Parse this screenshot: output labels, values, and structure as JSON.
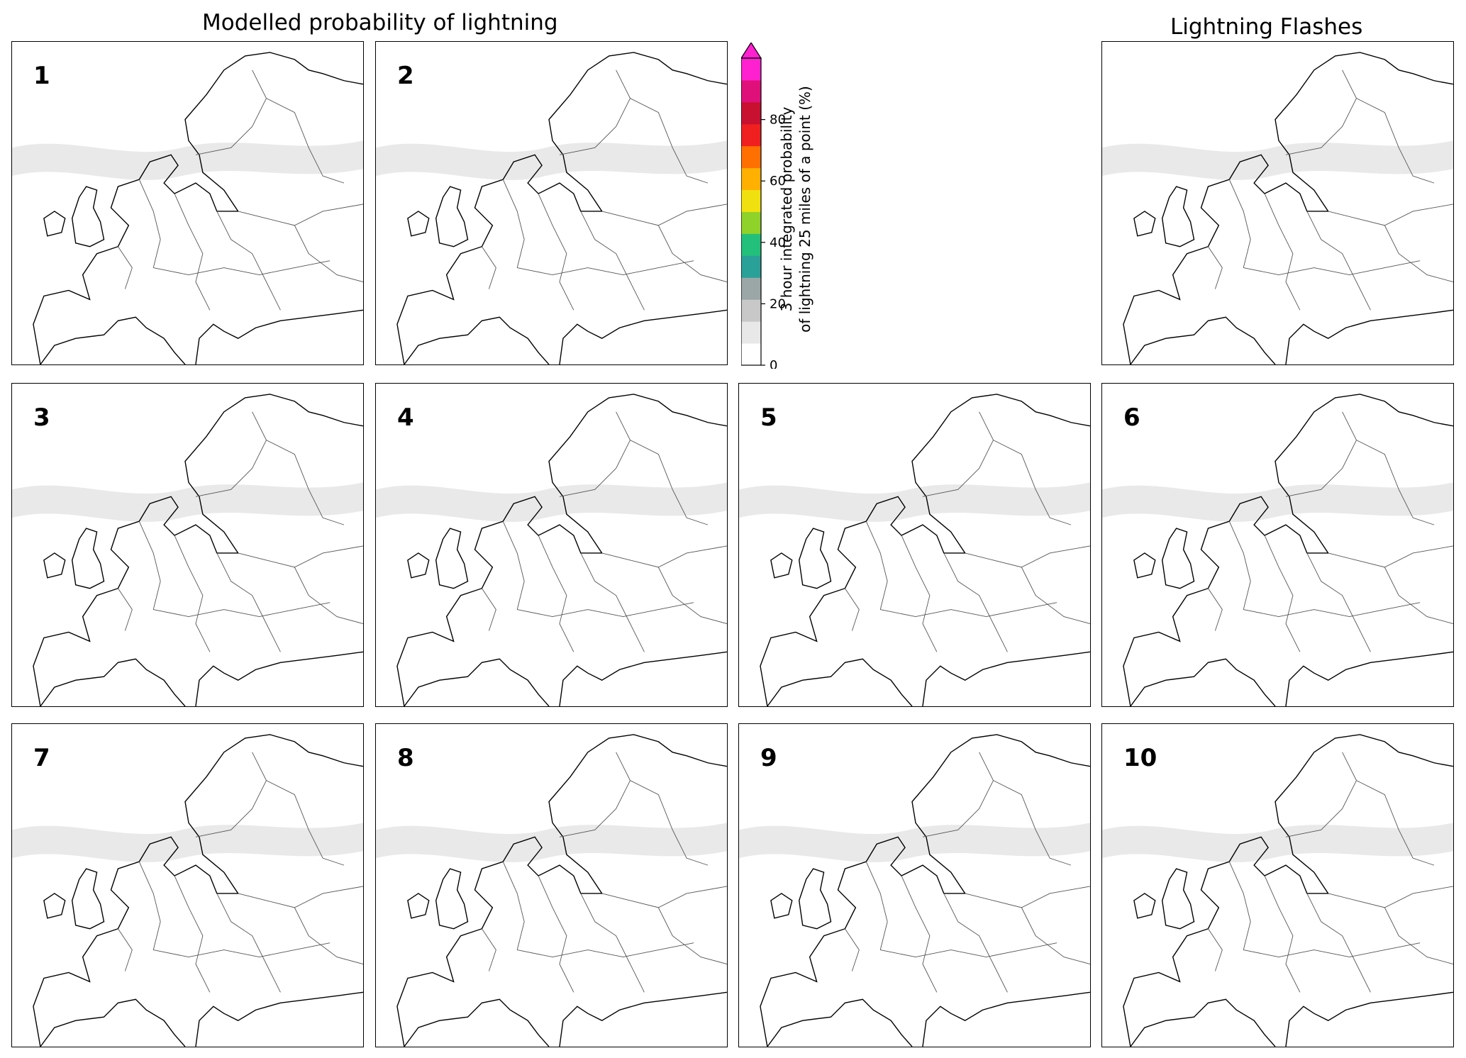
{
  "titles": {
    "model": "Modelled probability of lightning",
    "obs": "Lightning Flashes"
  },
  "colorbar": {
    "label_line1": "3 hour integrated probability",
    "label_line2": "of lightning 25 miles of a point (%)",
    "ticks": [
      "0",
      "20",
      "40",
      "60",
      "80"
    ],
    "tick_values": [
      0,
      20,
      40,
      60,
      80
    ],
    "max": 100,
    "extend": "max",
    "colors": [
      "#ffffff",
      "#e8e8e8",
      "#c8c8c8",
      "#9aa7a6",
      "#2aa198",
      "#22c07a",
      "#8fd22a",
      "#f0e010",
      "#ffb000",
      "#ff7000",
      "#f02020",
      "#c81030",
      "#e0107a",
      "#ff20d0"
    ]
  },
  "panels": [
    {
      "label": "1"
    },
    {
      "label": "2"
    },
    {
      "label": "3"
    },
    {
      "label": "4"
    },
    {
      "label": "5"
    },
    {
      "label": "6"
    },
    {
      "label": "7"
    },
    {
      "label": "8"
    },
    {
      "label": "9"
    },
    {
      "label": "10"
    }
  ],
  "observation_color": "#ffa500"
}
